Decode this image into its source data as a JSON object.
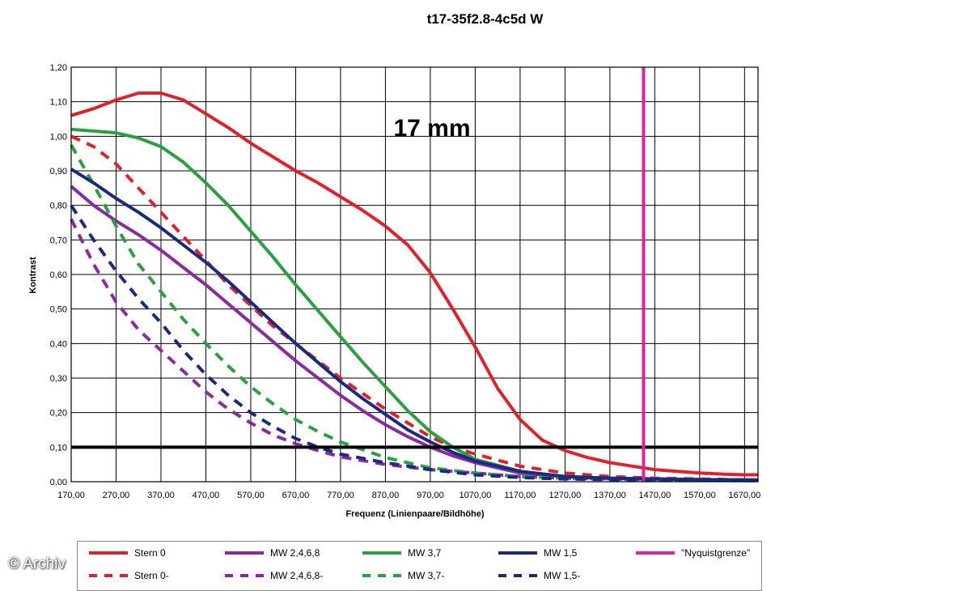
{
  "title": "t17-35f2.8-4c5d W",
  "annotation": "17 mm",
  "watermark": "© Archiv",
  "chart_data": {
    "type": "line",
    "title": "t17-35f2.8-4c5d W",
    "xlabel": "Frequenz (Linienpaare/Bildhöhe)",
    "ylabel": "Kontrast",
    "xlim": [
      170,
      1700
    ],
    "ylim": [
      0,
      1.2
    ],
    "xticks": [
      "170,00",
      "270,00",
      "370,00",
      "470,00",
      "570,00",
      "670,00",
      "770,00",
      "870,00",
      "970,00",
      "1070,00",
      "1170,00",
      "1270,00",
      "1370,00",
      "1470,00",
      "1570,00",
      "1670,00"
    ],
    "yticks": [
      "0,00",
      "0,10",
      "0,20",
      "0,30",
      "0,40",
      "0,50",
      "0,60",
      "0,70",
      "0,80",
      "0,90",
      "1,00",
      "1,10",
      "1,20"
    ],
    "grid": true,
    "reference_line": {
      "y": 0.1,
      "color": "#000000"
    },
    "vertical_line": {
      "name": "\"Nyquistgrenze\"",
      "x": 1445,
      "color": "#e020a0"
    },
    "series": [
      {
        "name": "Stern 0",
        "color": "#e0202a",
        "dashed": false,
        "x": [
          170,
          220,
          270,
          320,
          370,
          420,
          470,
          520,
          570,
          620,
          670,
          720,
          770,
          820,
          870,
          920,
          970,
          1020,
          1070,
          1120,
          1170,
          1220,
          1270,
          1320,
          1370,
          1420,
          1470,
          1520,
          1570,
          1620,
          1670,
          1700
        ],
        "y": [
          1.06,
          1.08,
          1.105,
          1.125,
          1.125,
          1.105,
          1.065,
          1.025,
          0.98,
          0.94,
          0.9,
          0.865,
          0.825,
          0.785,
          0.74,
          0.685,
          0.605,
          0.5,
          0.39,
          0.27,
          0.18,
          0.12,
          0.09,
          0.07,
          0.055,
          0.045,
          0.035,
          0.03,
          0.025,
          0.022,
          0.02,
          0.02
        ]
      },
      {
        "name": "Stern 0-",
        "color": "#e0202a",
        "dashed": true,
        "x": [
          170,
          220,
          270,
          320,
          370,
          420,
          470,
          520,
          570,
          620,
          670,
          720,
          770,
          820,
          870,
          920,
          970,
          1020,
          1070,
          1170,
          1270,
          1370,
          1470,
          1570,
          1700
        ],
        "y": [
          1.0,
          0.97,
          0.92,
          0.85,
          0.78,
          0.71,
          0.64,
          0.57,
          0.51,
          0.45,
          0.4,
          0.35,
          0.3,
          0.255,
          0.21,
          0.17,
          0.13,
          0.1,
          0.08,
          0.045,
          0.025,
          0.015,
          0.01,
          0.008,
          0.005
        ]
      },
      {
        "name": "MW 2,4,6,8",
        "color": "#8a2aa0",
        "dashed": false,
        "x": [
          170,
          220,
          270,
          320,
          370,
          420,
          470,
          520,
          570,
          620,
          670,
          720,
          770,
          820,
          870,
          920,
          970,
          1020,
          1070,
          1170,
          1270,
          1370,
          1470,
          1570,
          1700
        ],
        "y": [
          0.855,
          0.8,
          0.755,
          0.715,
          0.67,
          0.62,
          0.57,
          0.515,
          0.46,
          0.405,
          0.35,
          0.3,
          0.25,
          0.205,
          0.165,
          0.13,
          0.1,
          0.075,
          0.055,
          0.025,
          0.015,
          0.01,
          0.008,
          0.006,
          0.005
        ]
      },
      {
        "name": "MW 2,4,6,8-",
        "color": "#8a2aa0",
        "dashed": true,
        "x": [
          170,
          220,
          270,
          320,
          370,
          420,
          470,
          520,
          570,
          620,
          670,
          720,
          770,
          870,
          970,
          1070,
          1170,
          1270,
          1370,
          1470,
          1570,
          1700
        ],
        "y": [
          0.76,
          0.63,
          0.52,
          0.44,
          0.38,
          0.32,
          0.26,
          0.21,
          0.17,
          0.135,
          0.11,
          0.09,
          0.072,
          0.05,
          0.035,
          0.025,
          0.015,
          0.01,
          0.008,
          0.006,
          0.005,
          0.004
        ]
      },
      {
        "name": "MW 3,7",
        "color": "#2aa040",
        "dashed": false,
        "x": [
          170,
          220,
          270,
          320,
          370,
          420,
          470,
          520,
          570,
          620,
          670,
          720,
          770,
          820,
          870,
          920,
          970,
          1020,
          1070,
          1170,
          1270,
          1370,
          1470,
          1570,
          1700
        ],
        "y": [
          1.02,
          1.015,
          1.01,
          0.995,
          0.97,
          0.925,
          0.865,
          0.8,
          0.725,
          0.65,
          0.57,
          0.495,
          0.42,
          0.345,
          0.275,
          0.205,
          0.145,
          0.1,
          0.065,
          0.03,
          0.015,
          0.01,
          0.008,
          0.006,
          0.005
        ]
      },
      {
        "name": "MW 3,7-",
        "color": "#2aa040",
        "dashed": true,
        "x": [
          170,
          220,
          270,
          320,
          370,
          420,
          470,
          520,
          570,
          620,
          670,
          720,
          770,
          870,
          970,
          1070,
          1170,
          1270,
          1370,
          1470,
          1570,
          1700
        ],
        "y": [
          0.975,
          0.86,
          0.74,
          0.63,
          0.55,
          0.47,
          0.4,
          0.335,
          0.275,
          0.225,
          0.18,
          0.145,
          0.115,
          0.07,
          0.04,
          0.025,
          0.015,
          0.01,
          0.008,
          0.006,
          0.005,
          0.004
        ]
      },
      {
        "name": "MW 1,5",
        "color": "#1a2a80",
        "dashed": false,
        "x": [
          170,
          220,
          270,
          320,
          370,
          420,
          470,
          520,
          570,
          620,
          670,
          720,
          770,
          820,
          870,
          920,
          970,
          1020,
          1070,
          1170,
          1270,
          1370,
          1470,
          1570,
          1700
        ],
        "y": [
          0.905,
          0.865,
          0.82,
          0.78,
          0.735,
          0.685,
          0.635,
          0.58,
          0.52,
          0.46,
          0.4,
          0.345,
          0.29,
          0.24,
          0.195,
          0.15,
          0.115,
          0.085,
          0.06,
          0.03,
          0.015,
          0.01,
          0.008,
          0.006,
          0.005
        ]
      },
      {
        "name": "MW 1,5-",
        "color": "#1a2a80",
        "dashed": true,
        "x": [
          170,
          220,
          270,
          320,
          370,
          420,
          470,
          520,
          570,
          620,
          670,
          720,
          770,
          870,
          970,
          1070,
          1170,
          1270,
          1370,
          1470,
          1570,
          1700
        ],
        "y": [
          0.8,
          0.7,
          0.61,
          0.53,
          0.46,
          0.38,
          0.31,
          0.25,
          0.2,
          0.16,
          0.125,
          0.1,
          0.08,
          0.055,
          0.035,
          0.02,
          0.012,
          0.008,
          0.006,
          0.005,
          0.004,
          0.003
        ]
      }
    ]
  },
  "legend": {
    "items": [
      {
        "label": "Stern 0",
        "color": "#e0202a",
        "dashed": false
      },
      {
        "label": "MW 2,4,6,8",
        "color": "#8a2aa0",
        "dashed": false
      },
      {
        "label": "MW 3,7",
        "color": "#2aa040",
        "dashed": false
      },
      {
        "label": "MW 1,5",
        "color": "#1a2a80",
        "dashed": false
      },
      {
        "label": "\"Nyquistgrenze\"",
        "color": "#e020a0",
        "dashed": false
      },
      {
        "label": "Stern 0-",
        "color": "#e0202a",
        "dashed": true
      },
      {
        "label": "MW 2,4,6,8-",
        "color": "#8a2aa0",
        "dashed": true
      },
      {
        "label": "MW 3,7-",
        "color": "#2aa040",
        "dashed": true
      },
      {
        "label": "MW 1,5-",
        "color": "#1a2a80",
        "dashed": true
      }
    ]
  }
}
